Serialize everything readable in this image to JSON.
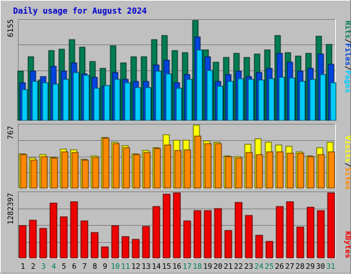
{
  "title": "Daily usage for August 2024",
  "colors": {
    "background": "#c0c0c0",
    "title": "#0000cc",
    "hits": "#007c52",
    "files": "#0044dd",
    "pages": "#00ccff",
    "visits": "#ffff00",
    "sites": "#ff8800",
    "kbytes": "#ee0000",
    "weekend_day": "#00805c",
    "weekday": "#000000"
  },
  "chart_data": [
    {
      "type": "bar",
      "panel": "hits-files-pages",
      "y_max_label": "6155",
      "ylim": [
        0,
        6155
      ],
      "legend": [
        "Pages",
        "Files",
        "Hits"
      ],
      "legend_separator": "/",
      "categories": [
        "1",
        "2",
        "3",
        "4",
        "5",
        "6",
        "7",
        "8",
        "9",
        "10",
        "11",
        "12",
        "13",
        "14",
        "15",
        "16",
        "17",
        "18",
        "19",
        "20",
        "21",
        "22",
        "23",
        "24",
        "25",
        "26",
        "27",
        "28",
        "29",
        "30",
        "31"
      ],
      "weekend_days": [
        "3",
        "4",
        "10",
        "11",
        "17",
        "18",
        "24",
        "25",
        "31"
      ],
      "series": [
        {
          "name": "Hits",
          "values": [
            3000,
            3900,
            2450,
            4250,
            4350,
            4950,
            4500,
            3600,
            3200,
            4550,
            3500,
            3900,
            3900,
            4950,
            5200,
            4250,
            4150,
            6100,
            4300,
            3550,
            3850,
            4100,
            3850,
            4050,
            4300,
            5200,
            4150,
            3950,
            4100,
            5150,
            4650
          ]
        },
        {
          "name": "Files",
          "values": [
            2300,
            3000,
            2700,
            3300,
            3000,
            3500,
            2850,
            2650,
            2100,
            2950,
            2500,
            2400,
            2400,
            3400,
            3700,
            2300,
            2800,
            5100,
            3900,
            2400,
            2800,
            3000,
            2700,
            2950,
            3200,
            4100,
            3550,
            3000,
            3200,
            4050,
            3450
          ]
        },
        {
          "name": "Pages",
          "values": [
            1900,
            2400,
            2300,
            2200,
            2500,
            2950,
            2750,
            1950,
            2150,
            2500,
            2300,
            2000,
            2000,
            3000,
            2850,
            1950,
            2500,
            4300,
            3050,
            2100,
            2400,
            2550,
            2500,
            2450,
            2550,
            2650,
            2600,
            2400,
            2500,
            2800,
            2300
          ]
        }
      ]
    },
    {
      "type": "bar",
      "panel": "sites-visits",
      "y_max_label": "767",
      "ylim": [
        0,
        767
      ],
      "legend": [
        "Sites",
        "Visits"
      ],
      "legend_separator": "/",
      "series": [
        {
          "name": "Visits",
          "values": [
            410,
            360,
            400,
            370,
            470,
            460,
            350,
            390,
            610,
            550,
            510,
            410,
            450,
            490,
            640,
            580,
            580,
            760,
            570,
            550,
            390,
            380,
            530,
            590,
            550,
            520,
            500,
            440,
            390,
            490,
            550
          ]
        },
        {
          "name": "Sites",
          "values": [
            400,
            340,
            380,
            360,
            440,
            430,
            340,
            370,
            600,
            540,
            490,
            400,
            430,
            480,
            520,
            450,
            460,
            630,
            540,
            540,
            380,
            360,
            430,
            400,
            440,
            440,
            420,
            420,
            380,
            400,
            440
          ]
        }
      ]
    },
    {
      "type": "bar",
      "panel": "kbytes",
      "y_max_label": "1282397",
      "ylim": [
        0,
        1282397
      ],
      "legend": [
        "KBytes"
      ],
      "series": [
        {
          "name": "KBytes",
          "values": [
            630000,
            740000,
            580000,
            1070000,
            800000,
            1100000,
            720000,
            500000,
            210000,
            630000,
            420000,
            360000,
            620000,
            1000000,
            1240000,
            1270000,
            720000,
            920000,
            920000,
            960000,
            540000,
            1080000,
            830000,
            440000,
            320000,
            1000000,
            1100000,
            600000,
            990000,
            920000,
            1270000
          ]
        }
      ]
    }
  ]
}
